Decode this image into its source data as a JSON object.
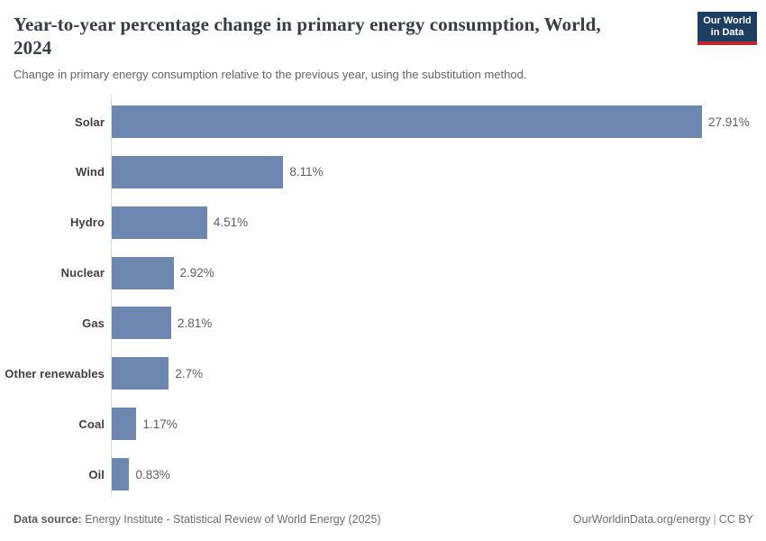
{
  "header": {
    "title": "Year-to-year percentage change in primary energy consumption, World, 2024",
    "subtitle": "Change in primary energy consumption relative to the previous year, using the substitution method."
  },
  "logo": {
    "line1": "Our World",
    "line2": "in Data",
    "bg_color": "#1d3d63",
    "stripe_color": "#c0272d"
  },
  "chart_data": {
    "type": "bar",
    "orientation": "horizontal",
    "title": "Year-to-year percentage change in primary energy consumption, World, 2024",
    "xlabel": "",
    "ylabel": "",
    "categories": [
      "Solar",
      "Wind",
      "Hydro",
      "Nuclear",
      "Gas",
      "Other renewables",
      "Coal",
      "Oil"
    ],
    "values": [
      27.91,
      8.11,
      4.51,
      2.92,
      2.81,
      2.7,
      1.17,
      0.83
    ],
    "value_labels": [
      "27.91%",
      "8.11%",
      "4.51%",
      "2.92%",
      "2.81%",
      "2.7%",
      "1.17%",
      "0.83%"
    ],
    "xlim": [
      0,
      27.91
    ],
    "bar_color": "#6d87b1",
    "grid": false,
    "legend": false
  },
  "footer": {
    "source_label": "Data source:",
    "source_text": "Energy Institute - Statistical Review of World Energy (2025)",
    "url": "OurWorldinData.org/energy",
    "separator": "|",
    "license": "CC BY"
  }
}
